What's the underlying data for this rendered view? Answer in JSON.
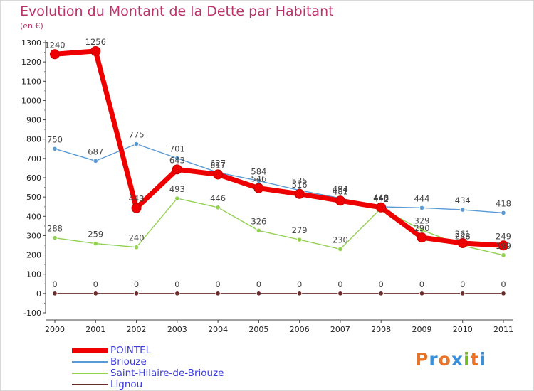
{
  "header": {
    "title": "Evolution du Montant de la Dette par Habitant",
    "unit": "(en €)"
  },
  "logo": {
    "text": "Proxiti",
    "letter_colors": [
      "#e8742a",
      "#3a8fd6",
      "#e8742a",
      "#3a8fd6",
      "#7ab833",
      "#e8742a",
      "#3a8fd6"
    ]
  },
  "chart_data": {
    "type": "line",
    "title": "Evolution du Montant de la Dette par Habitant",
    "ylabel": "(en €)",
    "xlabel": "",
    "x": [
      "2000",
      "2001",
      "2002",
      "2003",
      "2004",
      "2005",
      "2006",
      "2007",
      "2008",
      "2009",
      "2010",
      "2011"
    ],
    "ylim": [
      -100,
      1300
    ],
    "yticks": [
      -100,
      0,
      100,
      200,
      300,
      400,
      500,
      600,
      700,
      800,
      900,
      1000,
      1100,
      1200,
      1300
    ],
    "grid": false,
    "legend_position": "bottom-left",
    "series": [
      {
        "name": "POINTEL",
        "color": "#ee0000",
        "values": [
          1240,
          1256,
          443,
          643,
          617,
          546,
          516,
          481,
          446,
          290,
          261,
          249
        ]
      },
      {
        "name": "Briouze",
        "color": "#5b9bd5",
        "values": [
          750,
          687,
          775,
          701,
          627,
          584,
          535,
          494,
          449,
          444,
          434,
          418
        ]
      },
      {
        "name": "Saint-Hilaire-de-Briouze",
        "color": "#92d050",
        "values": [
          288,
          259,
          240,
          493,
          446,
          326,
          279,
          230,
          442,
          329,
          248,
          199
        ]
      },
      {
        "name": "Lignou",
        "color": "#6b2c2c",
        "values": [
          0,
          0,
          0,
          0,
          0,
          0,
          0,
          0,
          0,
          0,
          0,
          0
        ]
      }
    ]
  }
}
